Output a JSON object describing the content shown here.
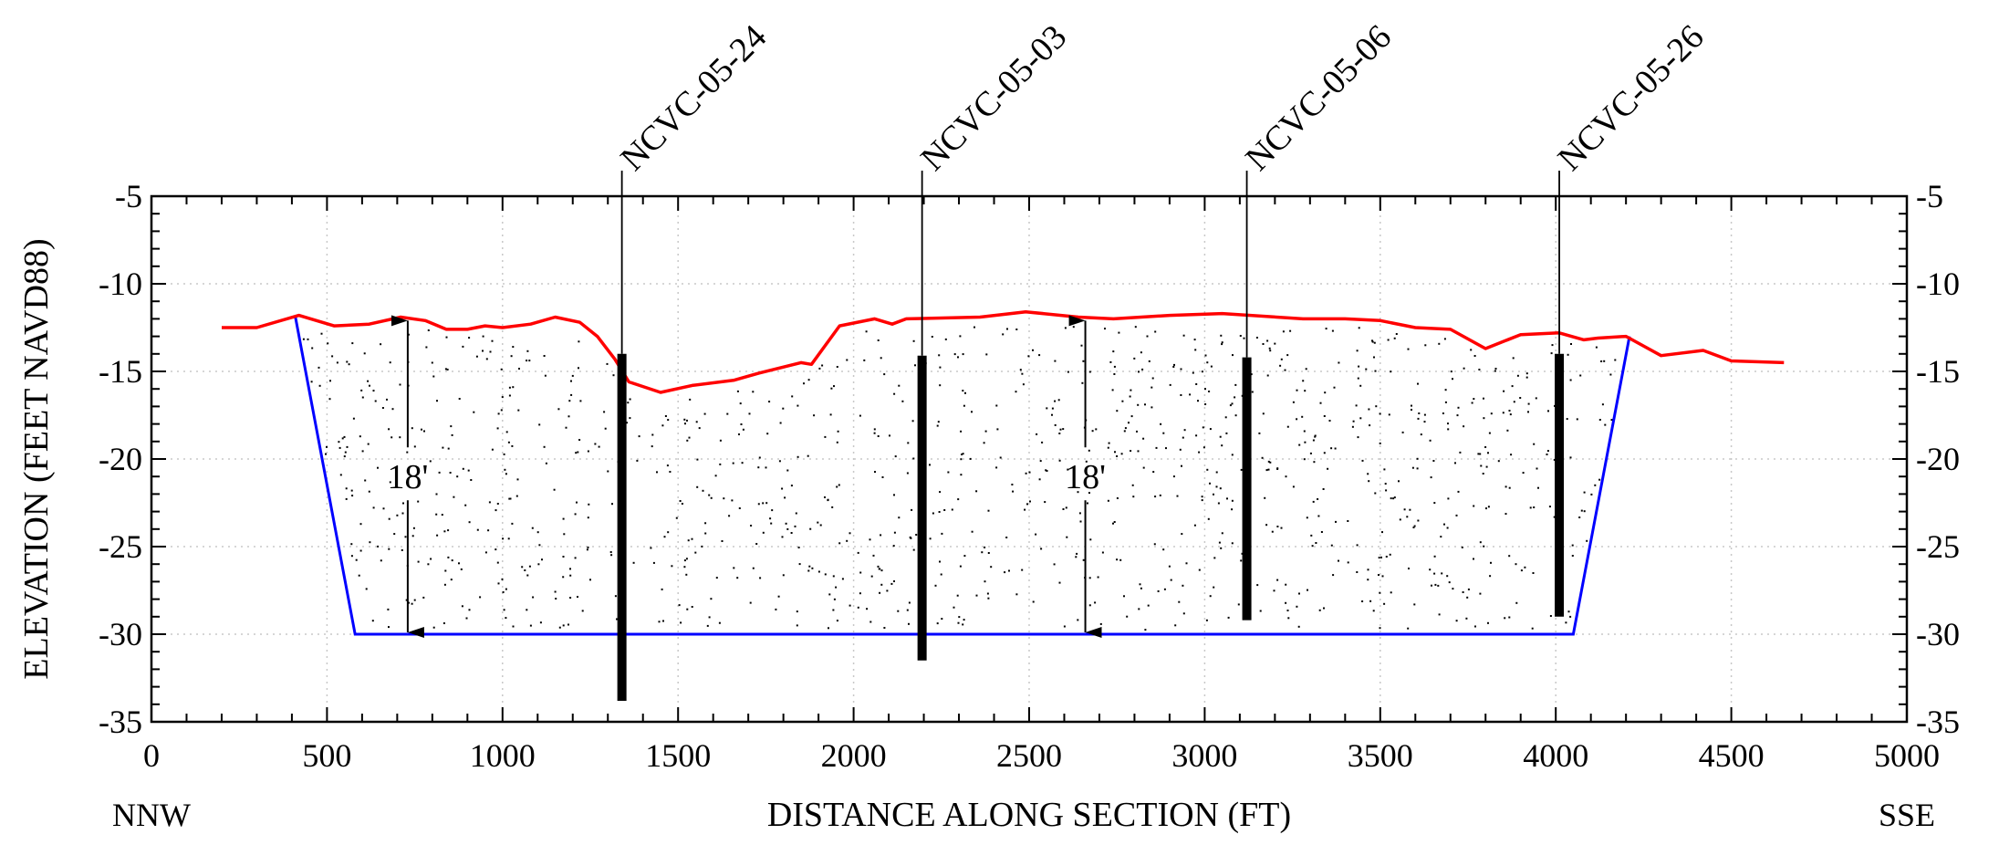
{
  "chart_data": {
    "type": "line",
    "title": "",
    "xlabel": "DISTANCE ALONG SECTION (FT)",
    "ylabel": "ELEVATION (FEET NAVD88)",
    "xlim": [
      0,
      5000
    ],
    "ylim": [
      -35,
      -5
    ],
    "x_ticks": [
      0,
      500,
      1000,
      1500,
      2000,
      2500,
      3000,
      3500,
      4000,
      4500,
      5000
    ],
    "y_ticks": [
      -5,
      -10,
      -15,
      -20,
      -25,
      -30,
      -35
    ],
    "grid": true,
    "direction_left": "NNW",
    "direction_right": "SSE",
    "colors": {
      "surface": "#ff0000",
      "dredge_prism": "#0000ff",
      "core": "#000000",
      "grid": "#c8c8c8"
    },
    "series": [
      {
        "points": [
          [
            200,
            -12.5
          ],
          [
            300,
            -12.5
          ],
          [
            420,
            -11.8
          ],
          [
            520,
            -12.4
          ],
          [
            620,
            -12.3
          ],
          [
            710,
            -11.9
          ],
          [
            780,
            -12.1
          ],
          [
            840,
            -12.6
          ],
          [
            900,
            -12.6
          ],
          [
            950,
            -12.4
          ],
          [
            1000,
            -12.5
          ],
          [
            1080,
            -12.3
          ],
          [
            1150,
            -11.9
          ],
          [
            1220,
            -12.2
          ],
          [
            1270,
            -13.0
          ],
          [
            1320,
            -14.3
          ],
          [
            1360,
            -15.6
          ],
          [
            1450,
            -16.2
          ],
          [
            1540,
            -15.8
          ],
          [
            1660,
            -15.5
          ],
          [
            1730,
            -15.1
          ],
          [
            1850,
            -14.5
          ],
          [
            1880,
            -14.6
          ],
          [
            1960,
            -12.4
          ],
          [
            2060,
            -12.0
          ],
          [
            2110,
            -12.3
          ],
          [
            2150,
            -12.0
          ],
          [
            2360,
            -11.9
          ],
          [
            2490,
            -11.6
          ],
          [
            2640,
            -11.9
          ],
          [
            2740,
            -12.0
          ],
          [
            2900,
            -11.8
          ],
          [
            3050,
            -11.7
          ],
          [
            3280,
            -12.0
          ],
          [
            3400,
            -12.0
          ],
          [
            3500,
            -12.1
          ],
          [
            3600,
            -12.5
          ],
          [
            3700,
            -12.6
          ],
          [
            3800,
            -13.7
          ],
          [
            3900,
            -12.9
          ],
          [
            4010,
            -12.8
          ],
          [
            4080,
            -13.2
          ],
          [
            4120,
            -13.1
          ],
          [
            4200,
            -13.0
          ],
          [
            4300,
            -14.1
          ],
          [
            4420,
            -13.8
          ],
          [
            4500,
            -14.4
          ],
          [
            4650,
            -14.5
          ]
        ]
      },
      {
        "points": [
          [
            410,
            -11.9
          ],
          [
            580,
            -30.0
          ],
          [
            4050,
            -30.0
          ],
          [
            4210,
            -13.0
          ]
        ]
      }
    ],
    "cores": [
      {
        "label": "NCVC-05-24",
        "x": 1340,
        "top": -14.0,
        "bottom": -33.8
      },
      {
        "label": "NCVC-05-03",
        "x": 2195,
        "top": -14.1,
        "bottom": -31.5
      },
      {
        "label": "NCVC-05-06",
        "x": 3120,
        "top": -14.2,
        "bottom": -29.2
      },
      {
        "label": "NCVC-05-26",
        "x": 4010,
        "top": -14.0,
        "bottom": -29.0
      }
    ],
    "annotations": [
      {
        "text": "18'",
        "x": 730,
        "top": -12.0,
        "bottom": -30.0
      },
      {
        "text": "18'",
        "x": 2660,
        "top": -12.0,
        "bottom": -30.0
      }
    ]
  }
}
